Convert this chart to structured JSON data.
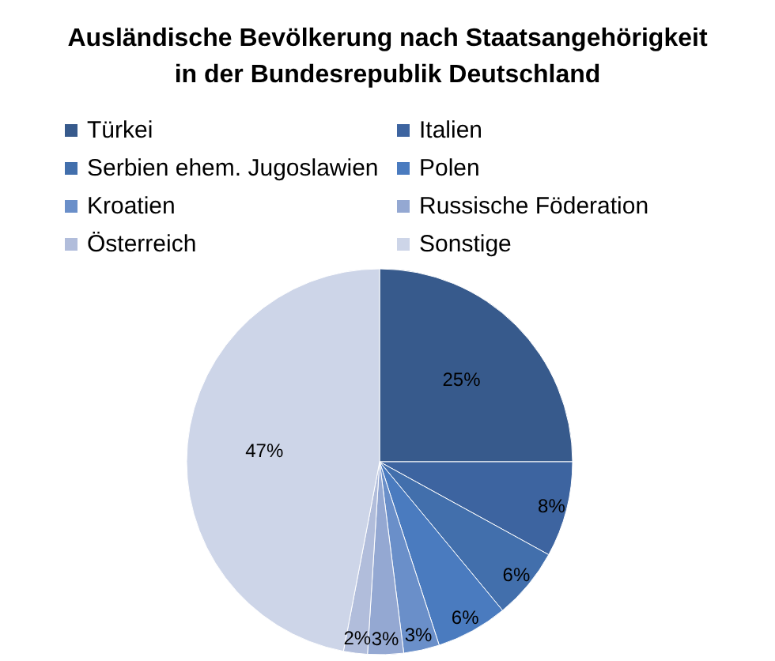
{
  "chart_data": {
    "type": "pie",
    "title": "Ausländische Bevölkerung nach Staatsangehörigkeit\nin der Bundesrepublik Deutschland",
    "categories": [
      "Türkei",
      "Italien",
      "Serbien ehem. Jugoslawien",
      "Polen",
      "Kroatien",
      "Russische Föderation",
      "Österreich",
      "Sonstige"
    ],
    "values": [
      25,
      8,
      6,
      6,
      3,
      3,
      2,
      47
    ],
    "value_labels": [
      "25%",
      "8%",
      "6%",
      "6%",
      "3%",
      "3%",
      "2%",
      "47%"
    ],
    "colors": [
      "#375a8c",
      "#3d64a0",
      "#426fac",
      "#4a7bbf",
      "#6a8fc9",
      "#94a8d2",
      "#b1bddb",
      "#cdd5e8"
    ],
    "legend": "top"
  }
}
